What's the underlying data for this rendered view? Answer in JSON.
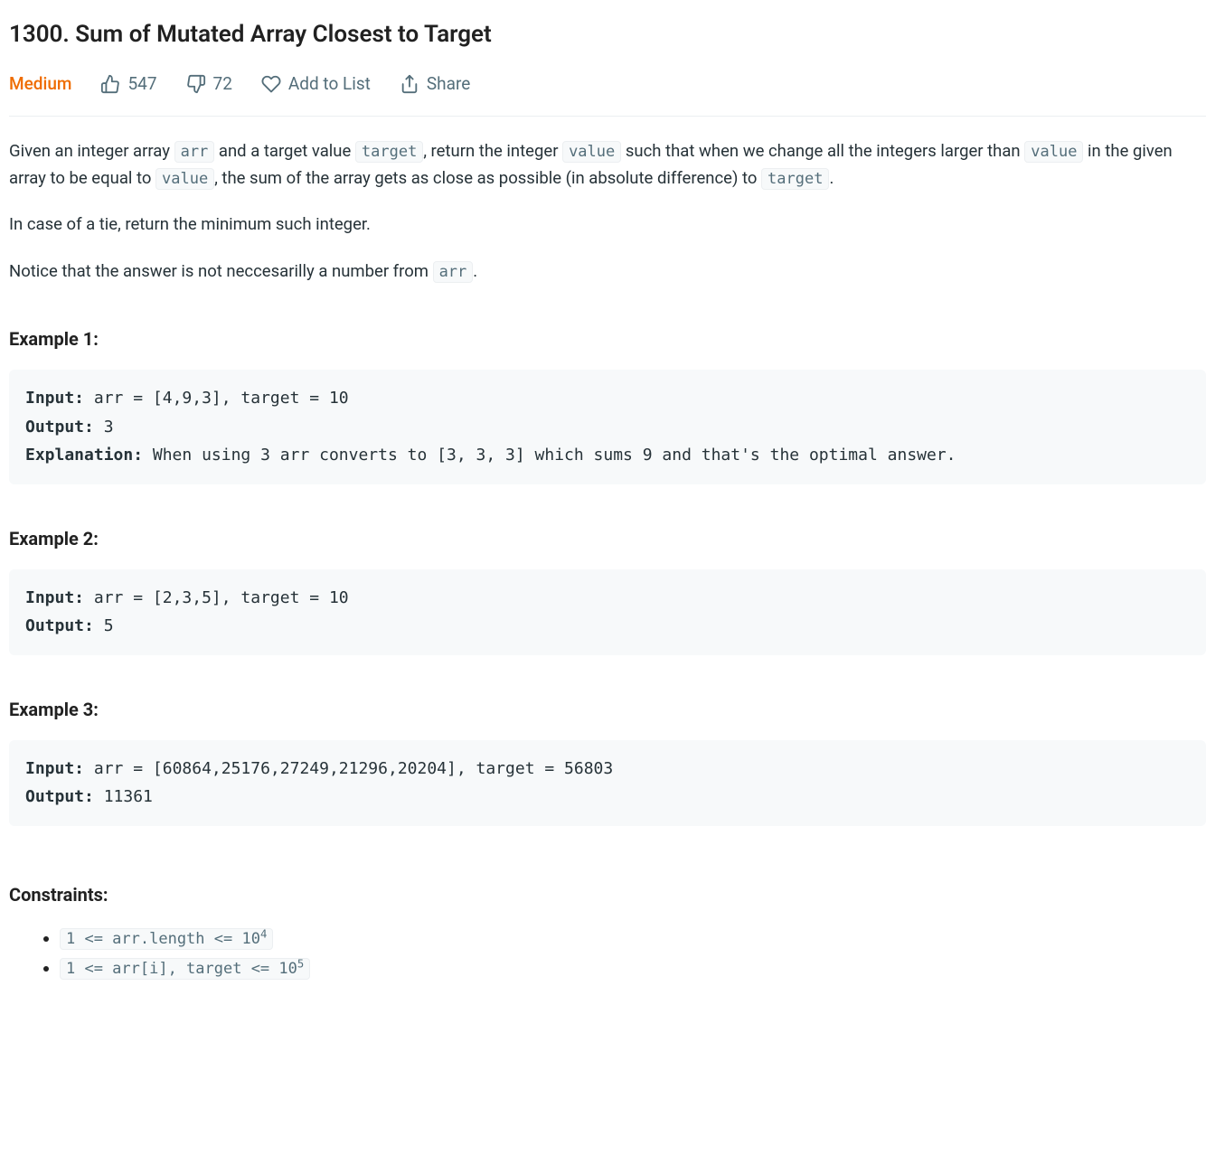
{
  "title": "1300. Sum of Mutated Array Closest to Target",
  "meta": {
    "difficulty": "Medium",
    "likes": "547",
    "dislikes": "72",
    "addToList": "Add to List",
    "share": "Share"
  },
  "colors": {
    "difficulty": "#ef6c00",
    "metaText": "#546e7a",
    "codeBg": "#f7f9fa",
    "codeBorder": "#eceff1",
    "preBg": "#f7f9fa",
    "bodyText": "#263238"
  },
  "description": {
    "p1_a": "Given an integer array ",
    "p1_code1": "arr",
    "p1_b": " and a target value ",
    "p1_code2": "target",
    "p1_c": ", return the integer ",
    "p1_code3": "value",
    "p1_d": " such that when we change all the integers larger than ",
    "p1_code4": "value",
    "p1_e": " in the given array to be equal to ",
    "p1_code5": "value",
    "p1_f": ", the sum of the array gets as close as possible (in absolute difference) to ",
    "p1_code6": "target",
    "p1_g": ".",
    "p2": "In case of a tie, return the minimum such integer.",
    "p3_a": "Notice that the answer is not neccesarilly a number from ",
    "p3_code1": "arr",
    "p3_b": "."
  },
  "labels": {
    "input": "Input:",
    "output": "Output:",
    "explanation": "Explanation:"
  },
  "examples": [
    {
      "heading": "Example 1:",
      "input": " arr = [4,9,3], target = 10",
      "output": " 3",
      "explanation": " When using 3 arr converts to [3, 3, 3] which sums 9 and that's the optimal answer."
    },
    {
      "heading": "Example 2:",
      "input": " arr = [2,3,5], target = 10",
      "output": " 5"
    },
    {
      "heading": "Example 3:",
      "input": " arr = [60864,25176,27249,21296,20204], target = 56803",
      "output": " 11361"
    }
  ],
  "constraints": {
    "heading": "Constraints:",
    "items": [
      {
        "base": "1 <= arr.length <= 10",
        "sup": "4"
      },
      {
        "base": "1 <= arr[i], target <= 10",
        "sup": "5"
      }
    ]
  }
}
